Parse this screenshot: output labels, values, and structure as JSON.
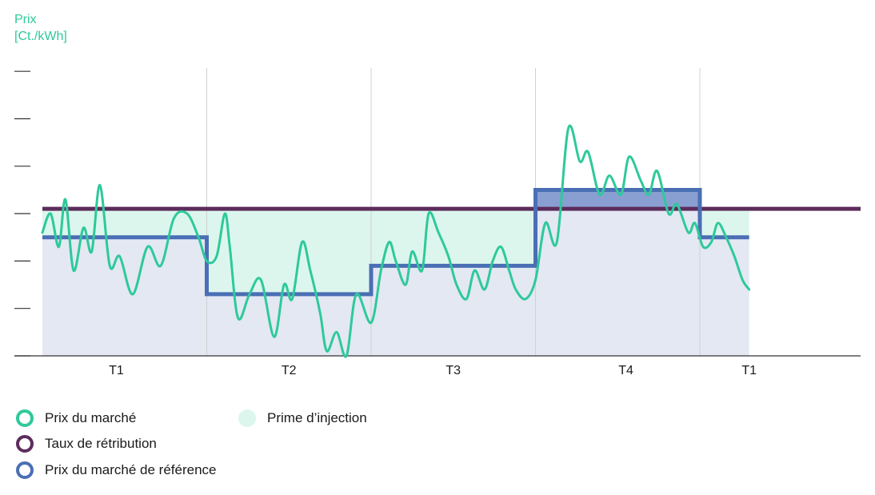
{
  "chart_data": {
    "type": "line",
    "y_unit_line1": "Prix",
    "y_unit_line2": "[Ct./kWh]",
    "categories": [
      "T1",
      "T2",
      "T3",
      "T4",
      "T1"
    ],
    "y_ticks_count": 7,
    "grid": "vertical quarter separators",
    "colors": {
      "market": "#2ec99a",
      "retribution": "#5c2c5c",
      "reference": "#4a6fb5",
      "premium_fill": "#dcf6ee",
      "reference_fill": "#e3e8f3",
      "above_fill": "#8a9fd1",
      "axis": "#333333",
      "grid": "#d0d0d0"
    },
    "series": [
      {
        "name": "Prix du marché",
        "key": "market",
        "x": [
          0.0,
          0.05,
          0.1,
          0.14,
          0.19,
          0.25,
          0.3,
          0.35,
          0.41,
          0.47,
          0.55,
          0.64,
          0.72,
          0.8,
          0.88,
          0.95,
          1.0,
          1.06,
          1.11,
          1.14,
          1.19,
          1.26,
          1.33,
          1.41,
          1.47,
          1.52,
          1.58,
          1.63,
          1.69,
          1.73,
          1.79,
          1.85,
          1.91,
          2.0,
          2.06,
          2.11,
          2.15,
          2.21,
          2.25,
          2.31,
          2.35,
          2.41,
          2.47,
          2.52,
          2.58,
          2.63,
          2.69,
          2.74,
          2.79,
          2.84,
          2.88,
          2.94,
          3.0,
          3.06,
          3.13,
          3.2,
          3.27,
          3.32,
          3.39,
          3.45,
          3.52,
          3.57,
          3.64,
          3.69,
          3.74,
          3.81,
          3.86,
          3.93,
          3.97,
          4.02,
          4.07,
          4.11,
          4.16,
          4.21,
          4.26,
          4.3
        ],
        "values": [
          2.6,
          3.0,
          2.3,
          3.3,
          1.8,
          2.7,
          2.2,
          3.6,
          1.9,
          2.1,
          1.3,
          2.3,
          1.9,
          2.9,
          3.0,
          2.5,
          2.0,
          2.1,
          3.0,
          2.3,
          0.8,
          1.3,
          1.6,
          0.4,
          1.5,
          1.2,
          2.4,
          1.8,
          0.9,
          0.1,
          0.5,
          0.0,
          1.3,
          0.7,
          1.8,
          2.4,
          2.0,
          1.5,
          2.2,
          1.8,
          3.0,
          2.6,
          2.1,
          1.5,
          1.2,
          1.8,
          1.4,
          2.0,
          2.3,
          1.8,
          1.4,
          1.2,
          1.6,
          2.8,
          2.4,
          4.8,
          4.1,
          4.3,
          3.4,
          3.8,
          3.4,
          4.2,
          3.7,
          3.4,
          3.9,
          3.0,
          3.2,
          2.6,
          2.8,
          2.3,
          2.4,
          2.8,
          2.5,
          2.1,
          1.6,
          1.4
        ]
      },
      {
        "name": "Taux de rétribution",
        "key": "retribution",
        "x": [
          0.0,
          4.3
        ],
        "values": [
          3.1,
          3.1
        ]
      },
      {
        "name": "Prix du marché de référence",
        "key": "reference",
        "x": [
          0.0,
          1.0,
          2.0,
          3.0,
          4.0
        ],
        "values": [
          2.5,
          1.3,
          1.9,
          3.5,
          2.5
        ]
      }
    ],
    "legend_area": {
      "label": "Prime d’injection"
    }
  }
}
